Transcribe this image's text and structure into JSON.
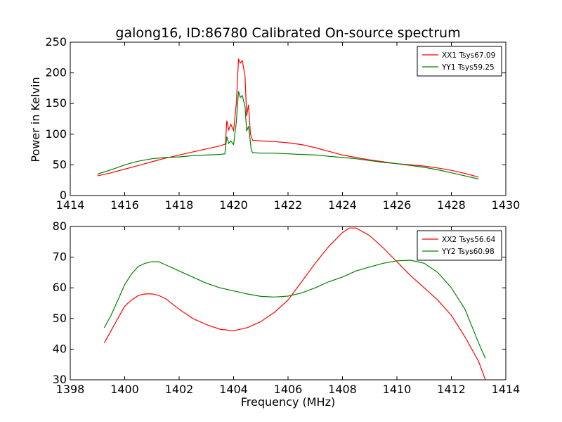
{
  "chart_data": [
    {
      "type": "line",
      "title": "galong16, ID:86780 Calibrated On-source spectrum",
      "xlabel": "",
      "ylabel": "Power in Kelvin",
      "xlim": [
        1414,
        1430
      ],
      "ylim": [
        0,
        250
      ],
      "xticks": [
        1414,
        1416,
        1418,
        1420,
        1422,
        1424,
        1426,
        1428,
        1430
      ],
      "yticks": [
        0,
        50,
        100,
        150,
        200,
        250
      ],
      "grid": false,
      "legend": "top-right",
      "series": [
        {
          "name": "XX1 Tsys67.09",
          "color": "#ff0000",
          "points": [
            [
              1415.0,
              32
            ],
            [
              1415.5,
              37
            ],
            [
              1416.0,
              43
            ],
            [
              1416.5,
              49
            ],
            [
              1417.0,
              55
            ],
            [
              1417.5,
              61
            ],
            [
              1418.0,
              66
            ],
            [
              1418.5,
              71
            ],
            [
              1419.0,
              76
            ],
            [
              1419.5,
              81
            ],
            [
              1419.7,
              84
            ],
            [
              1419.75,
              122
            ],
            [
              1419.82,
              107
            ],
            [
              1419.9,
              116
            ],
            [
              1420.0,
              106
            ],
            [
              1420.1,
              150
            ],
            [
              1420.18,
              222
            ],
            [
              1420.25,
              216
            ],
            [
              1420.32,
              220
            ],
            [
              1420.42,
              195
            ],
            [
              1420.48,
              130
            ],
            [
              1420.55,
              148
            ],
            [
              1420.62,
              100
            ],
            [
              1420.7,
              90
            ],
            [
              1421.0,
              89
            ],
            [
              1421.5,
              88
            ],
            [
              1422.0,
              86
            ],
            [
              1422.5,
              83
            ],
            [
              1423.0,
              78
            ],
            [
              1423.5,
              72
            ],
            [
              1424.0,
              66
            ],
            [
              1424.5,
              62
            ],
            [
              1425.0,
              58
            ],
            [
              1425.5,
              55
            ],
            [
              1426.0,
              52
            ],
            [
              1426.5,
              50
            ],
            [
              1427.0,
              48
            ],
            [
              1427.5,
              45
            ],
            [
              1428.0,
              41
            ],
            [
              1428.5,
              36
            ],
            [
              1429.0,
              30
            ]
          ]
        },
        {
          "name": "YY1 Tsys59.25",
          "color": "#008000",
          "points": [
            [
              1415.0,
              35
            ],
            [
              1415.5,
              42
            ],
            [
              1416.0,
              50
            ],
            [
              1416.5,
              56
            ],
            [
              1417.0,
              60
            ],
            [
              1417.5,
              62
            ],
            [
              1418.0,
              63
            ],
            [
              1418.5,
              65
            ],
            [
              1419.0,
              66
            ],
            [
              1419.5,
              67
            ],
            [
              1419.68,
              68
            ],
            [
              1419.75,
              96
            ],
            [
              1419.82,
              85
            ],
            [
              1419.9,
              89
            ],
            [
              1420.0,
              83
            ],
            [
              1420.1,
              120
            ],
            [
              1420.18,
              170
            ],
            [
              1420.25,
              160
            ],
            [
              1420.32,
              163
            ],
            [
              1420.42,
              145
            ],
            [
              1420.48,
              105
            ],
            [
              1420.55,
              113
            ],
            [
              1420.65,
              74
            ],
            [
              1420.7,
              70
            ],
            [
              1421.0,
              69
            ],
            [
              1421.5,
              69
            ],
            [
              1422.0,
              68
            ],
            [
              1422.5,
              67
            ],
            [
              1423.0,
              66
            ],
            [
              1423.5,
              64
            ],
            [
              1424.0,
              62
            ],
            [
              1424.5,
              60
            ],
            [
              1425.0,
              57
            ],
            [
              1425.5,
              54
            ],
            [
              1426.0,
              52
            ],
            [
              1426.5,
              49
            ],
            [
              1427.0,
              46
            ],
            [
              1427.5,
              42
            ],
            [
              1428.0,
              37
            ],
            [
              1428.5,
              32
            ],
            [
              1429.0,
              27
            ]
          ]
        }
      ]
    },
    {
      "type": "line",
      "title": "",
      "xlabel": "Frequency (MHz)",
      "ylabel": "",
      "xlim": [
        1398,
        1414
      ],
      "ylim": [
        30,
        80
      ],
      "xticks": [
        1398,
        1400,
        1402,
        1404,
        1406,
        1408,
        1410,
        1412,
        1414
      ],
      "yticks": [
        30,
        40,
        50,
        60,
        70,
        80
      ],
      "grid": false,
      "legend": "top-right",
      "series": [
        {
          "name": "XX2 Tsys56.64",
          "color": "#ff0000",
          "points": [
            [
              1399.25,
              42
            ],
            [
              1399.5,
              46
            ],
            [
              1399.75,
              50
            ],
            [
              1400.0,
              54
            ],
            [
              1400.25,
              56
            ],
            [
              1400.5,
              57.5
            ],
            [
              1400.75,
              58
            ],
            [
              1401.0,
              58
            ],
            [
              1401.25,
              57.5
            ],
            [
              1401.5,
              56.5
            ],
            [
              1402.0,
              53
            ],
            [
              1402.5,
              50
            ],
            [
              1403.0,
              48
            ],
            [
              1403.5,
              46.5
            ],
            [
              1404.0,
              46
            ],
            [
              1404.5,
              47
            ],
            [
              1405.0,
              49
            ],
            [
              1405.5,
              52
            ],
            [
              1406.0,
              56
            ],
            [
              1406.5,
              62
            ],
            [
              1407.0,
              68
            ],
            [
              1407.5,
              73.5
            ],
            [
              1408.0,
              78
            ],
            [
              1408.25,
              79.5
            ],
            [
              1408.5,
              79.5
            ],
            [
              1409.0,
              77
            ],
            [
              1409.5,
              73
            ],
            [
              1410.0,
              68.5
            ],
            [
              1410.5,
              64
            ],
            [
              1411.0,
              60
            ],
            [
              1411.5,
              56
            ],
            [
              1412.0,
              51
            ],
            [
              1412.5,
              44
            ],
            [
              1413.0,
              36
            ],
            [
              1413.25,
              30
            ]
          ]
        },
        {
          "name": "YY2 Tsys60.98",
          "color": "#008000",
          "points": [
            [
              1399.25,
              47
            ],
            [
              1399.5,
              51
            ],
            [
              1399.75,
              56
            ],
            [
              1400.0,
              61
            ],
            [
              1400.25,
              64.5
            ],
            [
              1400.5,
              67
            ],
            [
              1400.75,
              68
            ],
            [
              1401.0,
              68.5
            ],
            [
              1401.25,
              68.5
            ],
            [
              1401.5,
              67.5
            ],
            [
              1402.0,
              65.5
            ],
            [
              1402.5,
              63.5
            ],
            [
              1403.0,
              61.5
            ],
            [
              1403.5,
              60
            ],
            [
              1404.0,
              59
            ],
            [
              1404.5,
              58
            ],
            [
              1405.0,
              57.2
            ],
            [
              1405.5,
              57
            ],
            [
              1406.0,
              57.3
            ],
            [
              1406.5,
              58.3
            ],
            [
              1407.0,
              60
            ],
            [
              1407.5,
              62
            ],
            [
              1408.0,
              63.5
            ],
            [
              1408.5,
              65.5
            ],
            [
              1409.0,
              66.8
            ],
            [
              1409.5,
              68
            ],
            [
              1410.0,
              68.8
            ],
            [
              1410.5,
              69
            ],
            [
              1411.0,
              68
            ],
            [
              1411.5,
              65
            ],
            [
              1412.0,
              60
            ],
            [
              1412.5,
              53
            ],
            [
              1413.0,
              42
            ],
            [
              1413.25,
              37
            ]
          ]
        }
      ]
    }
  ]
}
